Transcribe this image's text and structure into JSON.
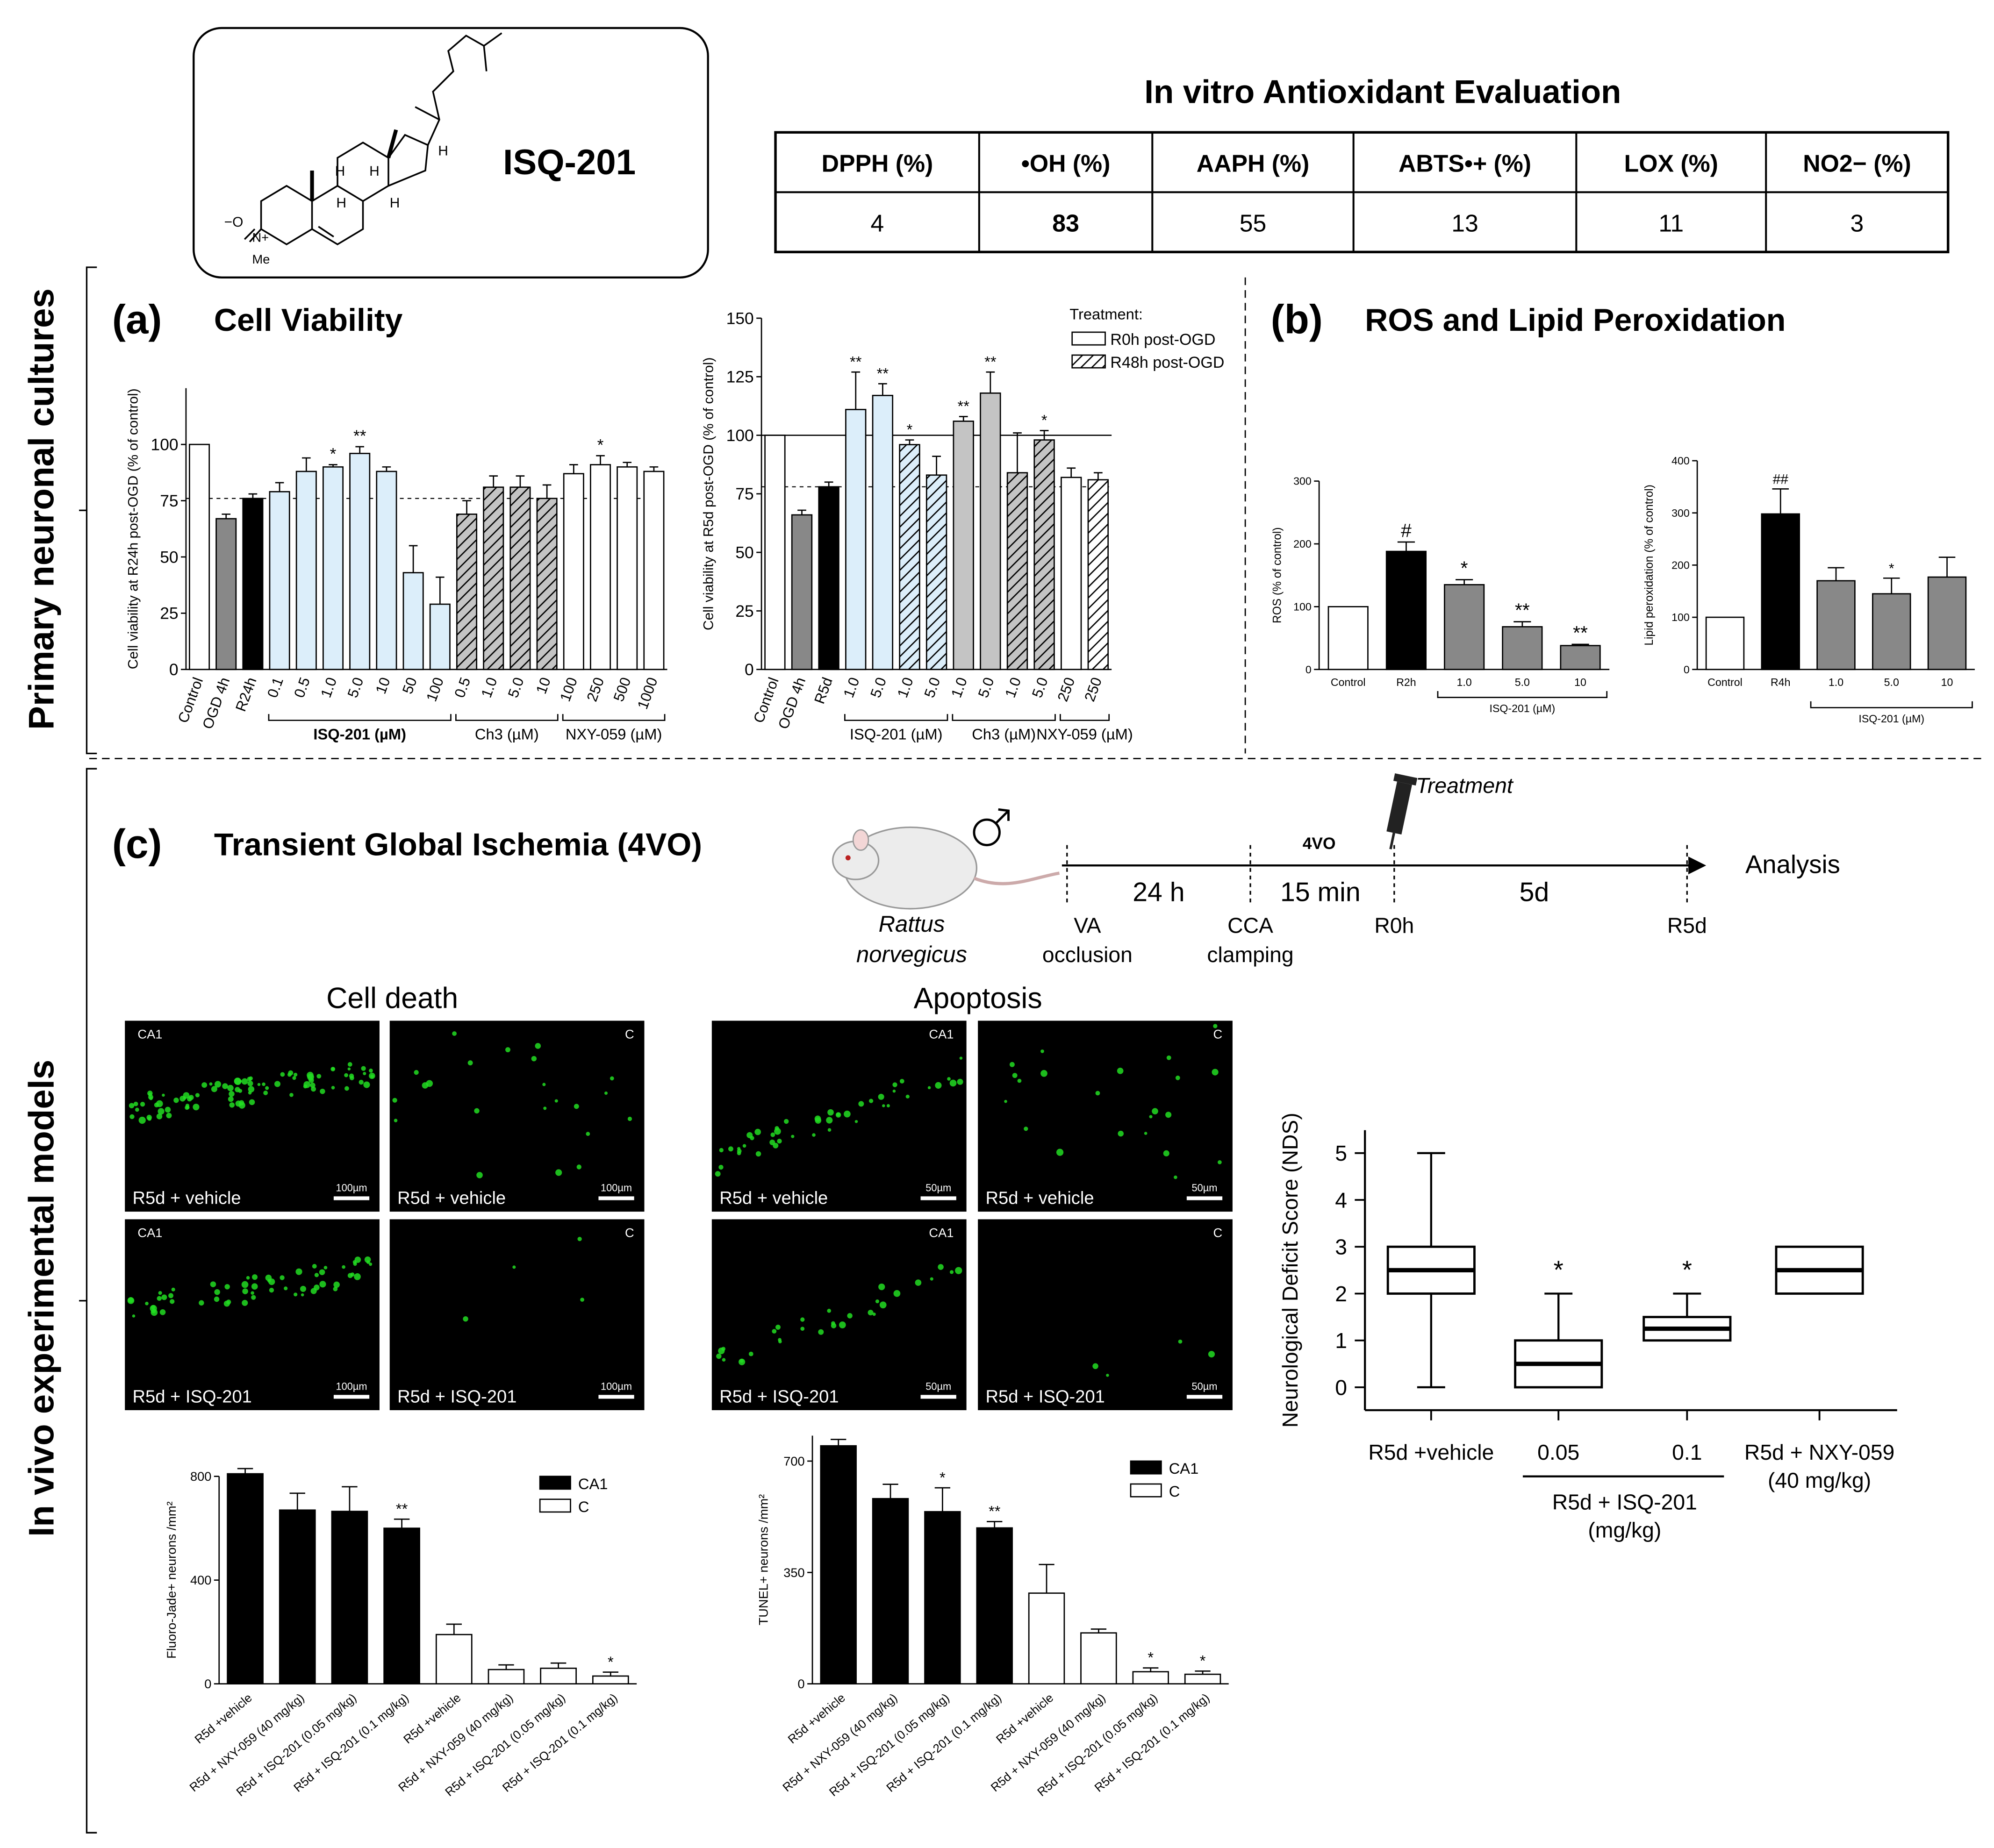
{
  "top": {
    "compound": "ISQ-201",
    "atom_o": "−O",
    "atom_n": "N+",
    "atom_me": "Me",
    "atom_h1": "H",
    "atom_h2": "H",
    "atom_h3": "H",
    "atom_h4": "H",
    "atom_h5": "H",
    "table_title": "In vitro Antioxidant Evaluation",
    "table_headers": [
      "DPPH (%)",
      "•OH (%)",
      "AAPH (%)",
      "ABTS•+ (%)",
      "LOX (%)",
      "NO2− (%)"
    ],
    "table_values": [
      "4",
      "83",
      "55",
      "13",
      "11",
      "3"
    ],
    "table_bold_index": 1
  },
  "labels": {
    "primary": "Primary neuronal cultures",
    "invivo": "In vivo experimental models",
    "a_letter": "(a)",
    "a_title": "Cell Viability",
    "b_letter": "(b)",
    "b_title": "ROS and Lipid Peroxidation",
    "c_letter": "(c)",
    "c_title": "Transient Global Ischemia (4VO)"
  },
  "timeline": {
    "species1": "Rattus",
    "species2": "norvegicus",
    "t1": "24 h",
    "t2": "15 min",
    "vo": "4VO",
    "t3": "5d",
    "analysis": "Analysis",
    "va1": "VA",
    "va2": "occlusion",
    "cca1": "CCA",
    "cca2": "clamping",
    "r0h": "R0h",
    "r5d": "R5d",
    "treatment": "Treatment"
  },
  "micro": {
    "celldeath_title": "Cell death",
    "apoptosis_title": "Apoptosis",
    "panels": [
      {
        "region": "CA1",
        "caption": "R5d + vehicle",
        "scale": "100µm"
      },
      {
        "region": "C",
        "caption": "R5d + vehicle",
        "scale": "100µm"
      },
      {
        "region": "CA1",
        "caption": "R5d + vehicle",
        "scale": "50µm"
      },
      {
        "region": "C",
        "caption": "R5d + vehicle",
        "scale": "50µm"
      },
      {
        "region": "CA1",
        "caption": "R5d + ISQ-201",
        "scale": "100µm"
      },
      {
        "region": "C",
        "caption": "R5d + ISQ-201",
        "scale": "100µm"
      },
      {
        "region": "CA1",
        "caption": "R5d + ISQ-201",
        "scale": "50µm"
      },
      {
        "region": "C",
        "caption": "R5d + ISQ-201",
        "scale": "50µm"
      }
    ]
  },
  "colors": {
    "light_blue": "#dceefa",
    "grey": "#888888",
    "light_grey": "#c4c4c4",
    "black": "#000000",
    "white": "#ffffff",
    "micro_green": "#22dd22"
  },
  "chart_data": [
    {
      "type": "bar",
      "ylabel": "Cell viability at R24h post-OGD (% of control)",
      "ylim": [
        0,
        125
      ],
      "yticks": [
        0,
        25,
        50,
        75,
        100
      ],
      "reference_line": 76,
      "categories": [
        "Control",
        "OGD 4h",
        "R24h",
        "0.1",
        "0.5",
        "1.0",
        "5.0",
        "10",
        "50",
        "100",
        "0.5",
        "1.0",
        "5.0",
        "10",
        "100",
        "250",
        "500",
        "1000"
      ],
      "values": [
        100,
        67,
        76,
        79,
        88,
        90,
        96,
        88,
        43,
        29,
        69,
        81,
        81,
        76,
        87,
        91,
        90,
        88
      ],
      "errors": [
        0,
        2,
        2,
        4,
        6,
        1,
        3,
        2,
        12,
        12,
        6,
        5,
        5,
        6,
        4,
        4,
        2,
        2
      ],
      "fills": [
        "white",
        "grey",
        "black",
        "lightblue",
        "lightblue",
        "lightblue",
        "lightblue",
        "lightblue",
        "lightblue",
        "lightblue",
        "hatch-grey",
        "hatch-grey",
        "hatch-grey",
        "hatch-grey",
        "white",
        "white",
        "white",
        "white"
      ],
      "significance": [
        "",
        "",
        "",
        "",
        "",
        "*",
        "**",
        "",
        "",
        "",
        "",
        "",
        "",
        "",
        "",
        "*",
        "",
        ""
      ],
      "groups": [
        {
          "label": "ISQ-201 (µM)",
          "from": 3,
          "to": 9,
          "bold": true
        },
        {
          "label": "Ch3 (µM)",
          "from": 10,
          "to": 13,
          "bold": false
        },
        {
          "label": "NXY-059 (µM)",
          "from": 14,
          "to": 17,
          "bold": false
        }
      ]
    },
    {
      "type": "bar",
      "ylabel": "Cell viability at R5d post-OGD (% of control)",
      "ylim": [
        0,
        150
      ],
      "yticks": [
        0,
        25,
        50,
        75,
        100,
        125,
        150
      ],
      "reference_line": 78,
      "solid_line": 100,
      "categories": [
        "Control",
        "OGD 4h",
        "R5d",
        "1.0",
        "5.0",
        "1.0",
        "5.0",
        "1.0",
        "5.0",
        "1.0",
        "5.0",
        "250",
        "250"
      ],
      "values": [
        100,
        66,
        78,
        111,
        117,
        96,
        83,
        106,
        118,
        84,
        98,
        82,
        81
      ],
      "errors": [
        0,
        2,
        2,
        16,
        5,
        2,
        8,
        2,
        9,
        17,
        4,
        4,
        3
      ],
      "fills": [
        "white",
        "grey",
        "black",
        "lightblue",
        "lightblue",
        "hatch-lightblue",
        "hatch-lightblue",
        "lightgrey",
        "lightgrey",
        "hatch-grey",
        "hatch-grey",
        "white",
        "hatch-white"
      ],
      "significance": [
        "",
        "",
        "",
        "**",
        "**",
        "*",
        "",
        "**",
        "**",
        "",
        "*",
        "",
        ""
      ],
      "legend_title": "Treatment:",
      "legend": [
        "R0h post-OGD",
        "R48h post-OGD"
      ],
      "groups": [
        {
          "label": "ISQ-201 (µM)",
          "from": 3,
          "to": 6,
          "bold": false
        },
        {
          "label": "Ch3 (µM)",
          "from": 7,
          "to": 10,
          "bold": false
        },
        {
          "label": "NXY-059 (µM)",
          "from": 11,
          "to": 12,
          "bold": false
        }
      ]
    },
    {
      "type": "bar",
      "ylabel": "ROS (% of control)",
      "ylim": [
        0,
        300
      ],
      "yticks": [
        0,
        100,
        200,
        300
      ],
      "categories": [
        "Control",
        "R2h",
        "1.0",
        "5.0",
        "10"
      ],
      "values": [
        100,
        188,
        135,
        68,
        38
      ],
      "errors": [
        0,
        15,
        8,
        8,
        2
      ],
      "fills": [
        "white",
        "black",
        "grey",
        "grey",
        "grey"
      ],
      "significance": [
        "",
        "#",
        "*",
        "**",
        "**"
      ],
      "groups": [
        {
          "label": "ISQ-201 (µM)",
          "from": 2,
          "to": 4,
          "bold": false
        }
      ]
    },
    {
      "type": "bar",
      "ylabel": "Lipid peroxidation (% of control)",
      "ylim": [
        0,
        400
      ],
      "yticks": [
        0,
        100,
        200,
        300,
        400
      ],
      "categories": [
        "Control",
        "R4h",
        "1.0",
        "5.0",
        "10"
      ],
      "values": [
        100,
        298,
        170,
        145,
        177
      ],
      "errors": [
        0,
        48,
        25,
        30,
        38
      ],
      "fills": [
        "white",
        "black",
        "grey",
        "grey",
        "grey"
      ],
      "significance": [
        "",
        "##",
        "",
        "*",
        ""
      ],
      "groups": [
        {
          "label": "ISQ-201 (µM)",
          "from": 2,
          "to": 4,
          "bold": false
        }
      ]
    },
    {
      "type": "bar",
      "ylabel": "Fluoro-Jade+ neurons /mm²",
      "ylim": [
        0,
        800
      ],
      "yticks": [
        0,
        400,
        800
      ],
      "categories": [
        "R5d +vehicle",
        "R5d + NXY-059 (40 mg/kg)",
        "R5d + ISQ-201 (0.05 mg/kg)",
        "R5d + ISQ-201 (0.1 mg/kg)",
        "R5d +vehicle",
        "R5d + NXY-059 (40 mg/kg)",
        "R5d + ISQ-201 (0.05 mg/kg)",
        "R5d + ISQ-201 (0.1 mg/kg)"
      ],
      "values": [
        810,
        670,
        665,
        600,
        190,
        55,
        60,
        30
      ],
      "errors": [
        20,
        65,
        95,
        35,
        40,
        18,
        20,
        15
      ],
      "fills": [
        "black",
        "black",
        "black",
        "black",
        "white",
        "white",
        "white",
        "white"
      ],
      "significance": [
        "",
        "",
        "",
        "**",
        "",
        "",
        "",
        "*"
      ],
      "legend": [
        "CA1",
        "C"
      ]
    },
    {
      "type": "bar",
      "ylabel": "TUNEL+ neurons /mm²",
      "ylim": [
        0,
        780
      ],
      "yticks": [
        0,
        350,
        700
      ],
      "categories": [
        "R5d +vehicle",
        "R5d + NXY-059 (40 mg/kg)",
        "R5d + ISQ-201 (0.05 mg/kg)",
        "R5d + ISQ-201 (0.1 mg/kg)",
        "R5d +vehicle",
        "R5d + NXY-059 (40 mg/kg)",
        "R5d + ISQ-201 (0.05 mg/kg)",
        "R5d + ISQ-201 (0.1 mg/kg)"
      ],
      "values": [
        748,
        582,
        541,
        490,
        285,
        160,
        38,
        30
      ],
      "errors": [
        20,
        45,
        75,
        20,
        90,
        12,
        12,
        10
      ],
      "fills": [
        "black",
        "black",
        "black",
        "black",
        "white",
        "white",
        "white",
        "white"
      ],
      "significance": [
        "",
        "",
        "*",
        "**",
        "",
        "",
        "*",
        "*"
      ],
      "legend": [
        "CA1",
        "C"
      ]
    },
    {
      "type": "box",
      "ylabel": "Neurological Deficit Score (NDS)",
      "ylim": [
        0,
        5.5
      ],
      "yticks": [
        0,
        1,
        2,
        3,
        4,
        5
      ],
      "categories": [
        "R5d +vehicle",
        "0.05",
        "0.1",
        "R5d + NXY-059"
      ],
      "category_sublabels": [
        "",
        "",
        "",
        "(40 mg/kg)"
      ],
      "boxes": [
        {
          "min": 0,
          "q1": 2,
          "median": 2.5,
          "q3": 3,
          "max": 5
        },
        {
          "min": 0,
          "q1": 0,
          "median": 0.5,
          "q3": 1,
          "max": 2
        },
        {
          "min": 1,
          "q1": 1,
          "median": 1.25,
          "q3": 1.5,
          "max": 2
        },
        {
          "min": 2,
          "q1": 2,
          "median": 2.5,
          "q3": 3,
          "max": 3
        }
      ],
      "significance": [
        "",
        "*",
        "*",
        ""
      ],
      "group_label_1": "R5d + ISQ-201",
      "group_label_2": "(mg/kg)"
    }
  ]
}
